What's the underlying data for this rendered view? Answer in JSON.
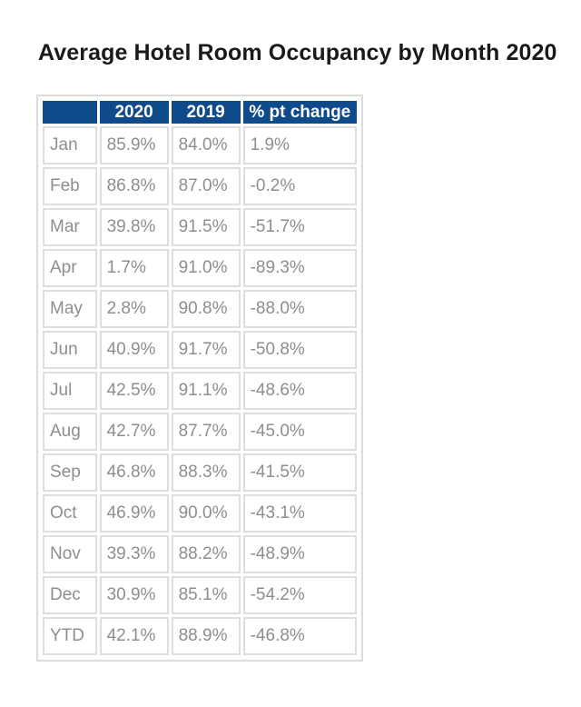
{
  "title": "Average Hotel Room Occupancy by Month 2020",
  "table": {
    "headers": [
      "",
      "2020",
      "2019",
      "% pt change"
    ],
    "header_color": "#0f4a8a",
    "rows": [
      [
        "Jan",
        "85.9%",
        "84.0%",
        "1.9%"
      ],
      [
        "Feb",
        "86.8%",
        "87.0%",
        "-0.2%"
      ],
      [
        "Mar",
        "39.8%",
        "91.5%",
        "-51.7%"
      ],
      [
        "Apr",
        "1.7%",
        "91.0%",
        "-89.3%"
      ],
      [
        "May",
        "2.8%",
        "90.8%",
        "-88.0%"
      ],
      [
        "Jun",
        "40.9%",
        "91.7%",
        "-50.8%"
      ],
      [
        "Jul",
        "42.5%",
        "91.1%",
        "-48.6%"
      ],
      [
        "Aug",
        "42.7%",
        "87.7%",
        "-45.0%"
      ],
      [
        "Sep",
        "46.8%",
        "88.3%",
        "-41.5%"
      ],
      [
        "Oct",
        "46.9%",
        "90.0%",
        "-43.1%"
      ],
      [
        "Nov",
        "39.3%",
        "88.2%",
        "-48.9%"
      ],
      [
        "Dec",
        "30.9%",
        "85.1%",
        "-54.2%"
      ],
      [
        "YTD",
        "42.1%",
        "88.9%",
        "-46.8%"
      ]
    ]
  }
}
